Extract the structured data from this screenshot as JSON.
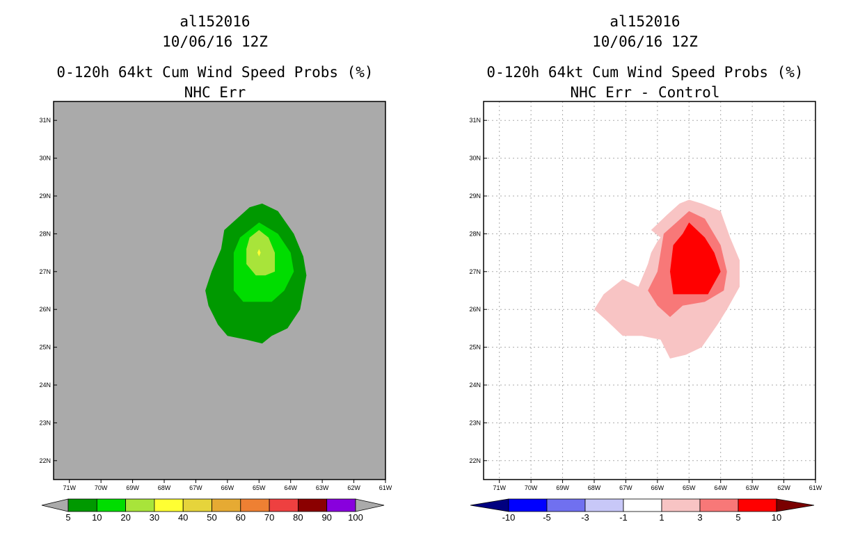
{
  "chart_data": [
    {
      "type": "contour",
      "title": [
        "al152016",
        "10/06/16 12Z",
        "0-120h 64kt Cum Wind Speed Probs (%)",
        "NHC Err"
      ],
      "xlabel": "",
      "ylabel": "",
      "xlim": [
        -71.5,
        -61.0
      ],
      "ylim": [
        21.5,
        31.5
      ],
      "x_ticks": [
        "71W",
        "70W",
        "69W",
        "68W",
        "67W",
        "66W",
        "65W",
        "64W",
        "63W",
        "62W",
        "61W"
      ],
      "y_ticks": [
        "22N",
        "23N",
        "24N",
        "25N",
        "26N",
        "27N",
        "28N",
        "29N",
        "30N",
        "31N"
      ],
      "grid": false,
      "background_color": "#aaaaaa",
      "levels": [
        {
          "level": 5,
          "color": "#009900",
          "lonlat": [
            [
              -64.9,
              28.8
            ],
            [
              -64.4,
              28.6
            ],
            [
              -63.9,
              28.0
            ],
            [
              -63.6,
              27.4
            ],
            [
              -63.5,
              26.9
            ],
            [
              -63.7,
              26.0
            ],
            [
              -64.1,
              25.5
            ],
            [
              -64.6,
              25.3
            ],
            [
              -64.9,
              25.1
            ],
            [
              -65.4,
              25.2
            ],
            [
              -66.0,
              25.3
            ],
            [
              -66.3,
              25.6
            ],
            [
              -66.6,
              26.1
            ],
            [
              -66.7,
              26.5
            ],
            [
              -66.5,
              27.0
            ],
            [
              -66.2,
              27.6
            ],
            [
              -66.1,
              28.1
            ],
            [
              -65.7,
              28.4
            ],
            [
              -65.3,
              28.7
            ]
          ]
        },
        {
          "level": 10,
          "color": "#00dd00",
          "lonlat": [
            [
              -65.0,
              28.3
            ],
            [
              -64.4,
              28.0
            ],
            [
              -64.0,
              27.5
            ],
            [
              -63.9,
              27.0
            ],
            [
              -64.2,
              26.5
            ],
            [
              -64.6,
              26.2
            ],
            [
              -65.5,
              26.2
            ],
            [
              -65.8,
              26.5
            ],
            [
              -65.8,
              27.0
            ],
            [
              -65.8,
              27.5
            ],
            [
              -65.6,
              27.9
            ]
          ]
        },
        {
          "level": 20,
          "color": "#a8e43a",
          "lonlat": [
            [
              -65.0,
              28.1
            ],
            [
              -64.7,
              27.9
            ],
            [
              -64.5,
              27.5
            ],
            [
              -64.5,
              27.0
            ],
            [
              -64.8,
              26.9
            ],
            [
              -65.1,
              26.9
            ],
            [
              -65.4,
              27.2
            ],
            [
              -65.4,
              27.6
            ],
            [
              -65.3,
              27.9
            ]
          ]
        },
        {
          "level": 30,
          "color": "#ffff33",
          "lonlat": [
            [
              -65.0,
              27.6
            ],
            [
              -64.95,
              27.5
            ],
            [
              -65.0,
              27.4
            ],
            [
              -65.05,
              27.5
            ]
          ]
        }
      ],
      "colorbar": {
        "labels": [
          "5",
          "10",
          "20",
          "30",
          "40",
          "50",
          "60",
          "70",
          "80",
          "90",
          "100"
        ],
        "colors": [
          "#aaaaaa",
          "#009900",
          "#00dd00",
          "#a8e43a",
          "#ffff33",
          "#e6d43b",
          "#e6aa33",
          "#ee8033",
          "#ee4040",
          "#8b0000",
          "#8800dd",
          "#aaaaaa"
        ]
      }
    },
    {
      "type": "contour",
      "title": [
        "al152016",
        "10/06/16 12Z",
        "0-120h 64kt Cum Wind Speed Probs (%)",
        "NHC Err - Control"
      ],
      "xlabel": "",
      "ylabel": "",
      "xlim": [
        -71.5,
        -61.0
      ],
      "ylim": [
        21.5,
        31.5
      ],
      "x_ticks": [
        "71W",
        "70W",
        "69W",
        "68W",
        "67W",
        "66W",
        "65W",
        "64W",
        "63W",
        "62W",
        "61W"
      ],
      "y_ticks": [
        "22N",
        "23N",
        "24N",
        "25N",
        "26N",
        "27N",
        "28N",
        "29N",
        "30N",
        "31N"
      ],
      "grid": true,
      "background_color": "#ffffff",
      "levels": [
        {
          "level": 1,
          "color": "#f8c4c4",
          "lonlat": [
            [
              -65.0,
              28.9
            ],
            [
              -64.6,
              28.8
            ],
            [
              -64.0,
              28.6
            ],
            [
              -63.7,
              27.9
            ],
            [
              -63.4,
              27.3
            ],
            [
              -63.4,
              26.6
            ],
            [
              -63.8,
              26.0
            ],
            [
              -64.1,
              25.6
            ],
            [
              -64.6,
              25.0
            ],
            [
              -65.1,
              24.8
            ],
            [
              -65.6,
              24.7
            ],
            [
              -65.9,
              25.2
            ],
            [
              -66.5,
              25.3
            ],
            [
              -67.1,
              25.3
            ],
            [
              -67.6,
              25.7
            ],
            [
              -68.0,
              26.0
            ],
            [
              -67.7,
              26.4
            ],
            [
              -67.1,
              26.8
            ],
            [
              -66.6,
              26.6
            ],
            [
              -66.3,
              27.2
            ],
            [
              -66.2,
              27.5
            ],
            [
              -66.0,
              27.8
            ],
            [
              -65.9,
              27.9
            ],
            [
              -66.2,
              28.1
            ],
            [
              -65.7,
              28.5
            ],
            [
              -65.3,
              28.8
            ]
          ]
        },
        {
          "level": 3,
          "color": "#f87878",
          "lonlat": [
            [
              -65.0,
              28.6
            ],
            [
              -64.5,
              28.4
            ],
            [
              -64.0,
              27.7
            ],
            [
              -63.8,
              27.0
            ],
            [
              -63.9,
              26.5
            ],
            [
              -64.5,
              26.2
            ],
            [
              -65.2,
              26.1
            ],
            [
              -65.6,
              25.8
            ],
            [
              -66.0,
              26.1
            ],
            [
              -66.3,
              26.5
            ],
            [
              -66.0,
              27.0
            ],
            [
              -65.9,
              27.5
            ],
            [
              -65.8,
              28.0
            ],
            [
              -65.4,
              28.3
            ]
          ]
        },
        {
          "level": 5,
          "color": "#ff0000",
          "lonlat": [
            [
              -65.0,
              28.3
            ],
            [
              -64.5,
              27.9
            ],
            [
              -64.2,
              27.5
            ],
            [
              -64.0,
              27.0
            ],
            [
              -64.4,
              26.4
            ],
            [
              -64.9,
              26.4
            ],
            [
              -65.5,
              26.4
            ],
            [
              -65.6,
              27.0
            ],
            [
              -65.5,
              27.7
            ],
            [
              -65.2,
              28.0
            ]
          ]
        }
      ],
      "colorbar": {
        "labels": [
          "-10",
          "-5",
          "-3",
          "-1",
          "1",
          "3",
          "5",
          "10"
        ],
        "colors": [
          "#000080",
          "#0000ff",
          "#7070f0",
          "#c8c8f8",
          "#ffffff",
          "#f8c4c4",
          "#f87878",
          "#ff0000",
          "#7a0000"
        ]
      }
    }
  ]
}
